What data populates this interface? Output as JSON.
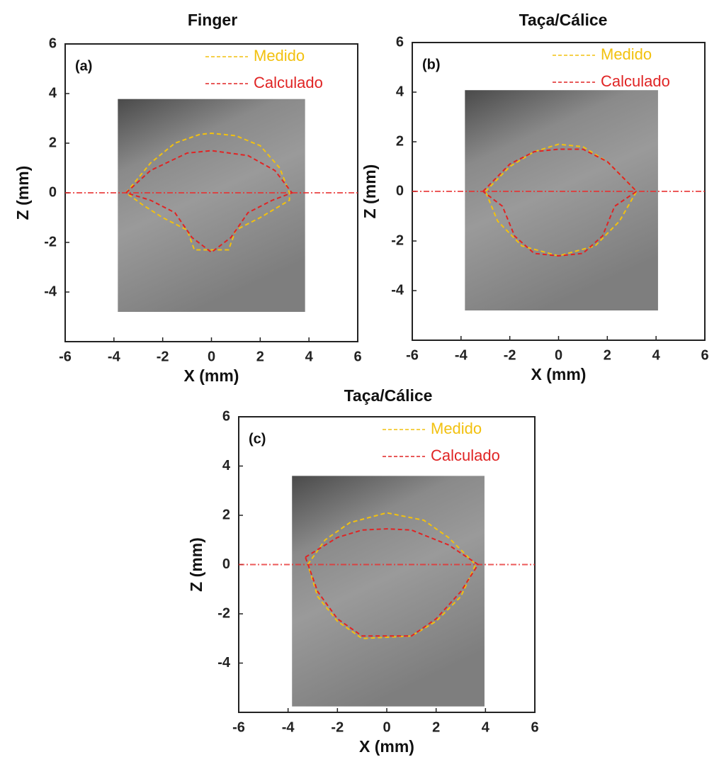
{
  "chart_data": [
    {
      "type": "line",
      "title": "Finger",
      "panel_label": "(a)",
      "x_label": "X (mm)",
      "y_label": "Z (mm)",
      "xlim": [
        -6,
        6
      ],
      "ylim": [
        -6,
        6
      ],
      "xticks": [
        -6,
        -4,
        -2,
        0,
        2,
        4,
        6
      ],
      "yticks": [
        -4,
        -2,
        0,
        2,
        4,
        6
      ],
      "hline": 0,
      "hline_color": "#e83030",
      "series": [
        {
          "name": "Medido",
          "color": "#f2c10f",
          "x": [
            -3.5,
            -2.5,
            -1.5,
            -0.5,
            0,
            1,
            2,
            2.8,
            3.2,
            3.2,
            2,
            1,
            0.7,
            -0.7,
            -1,
            -2,
            -2.8,
            -3.5
          ],
          "values": [
            0,
            1.2,
            2.0,
            2.35,
            2.4,
            2.3,
            1.9,
            1.0,
            0,
            -0.3,
            -1.0,
            -1.5,
            -2.3,
            -2.3,
            -1.5,
            -1.0,
            -0.5,
            0
          ]
        },
        {
          "name": "Calculado",
          "color": "#e02424",
          "x": [
            -3.5,
            -2.5,
            -1,
            0,
            1.5,
            2.6,
            3.3,
            2.5,
            1.5,
            0.8,
            0,
            -0.8,
            -1.5,
            -2.5,
            -3.5
          ],
          "values": [
            0,
            0.9,
            1.6,
            1.7,
            1.5,
            0.9,
            0,
            -0.3,
            -0.8,
            -1.8,
            -2.4,
            -1.8,
            -0.8,
            -0.3,
            0
          ]
        }
      ]
    },
    {
      "type": "line",
      "title": "Taça/Cálice",
      "panel_label": "(b)",
      "x_label": "X (mm)",
      "y_label": "Z (mm)",
      "xlim": [
        -6,
        6
      ],
      "ylim": [
        -6,
        6
      ],
      "xticks": [
        -6,
        -4,
        -2,
        0,
        2,
        4,
        6
      ],
      "yticks": [
        -4,
        -2,
        0,
        2,
        4,
        6
      ],
      "hline": 0,
      "hline_color": "#e83030",
      "series": [
        {
          "name": "Medido",
          "color": "#f2c10f",
          "x": [
            -3,
            -2,
            -1,
            0,
            1,
            2,
            2.8,
            3.2,
            2.5,
            1.5,
            0,
            -1.5,
            -2.5,
            -3
          ],
          "values": [
            0,
            1.0,
            1.6,
            1.9,
            1.8,
            1.2,
            0.4,
            0,
            -1.2,
            -2.2,
            -2.6,
            -2.2,
            -1.2,
            0
          ]
        },
        {
          "name": "Calculado",
          "color": "#e02424",
          "x": [
            -3.1,
            -2,
            -1,
            0,
            1,
            2,
            3,
            3.2,
            2.3,
            1.8,
            1,
            0,
            -1,
            -1.8,
            -2.3,
            -3.1
          ],
          "values": [
            0,
            1.1,
            1.6,
            1.7,
            1.7,
            1.2,
            0.2,
            0,
            -0.6,
            -1.8,
            -2.5,
            -2.6,
            -2.5,
            -1.8,
            -0.6,
            0
          ]
        }
      ]
    },
    {
      "type": "line",
      "title": "Taça/Cálice",
      "panel_label": "(c)",
      "x_label": "X (mm)",
      "y_label": "Z (mm)",
      "xlim": [
        -6,
        6
      ],
      "ylim": [
        -6,
        6
      ],
      "xticks": [
        -6,
        -4,
        -2,
        0,
        2,
        4,
        6
      ],
      "yticks": [
        -4,
        -2,
        0,
        2,
        4,
        6
      ],
      "hline": 0,
      "hline_color": "#e83030",
      "series": [
        {
          "name": "Medido",
          "color": "#f2c10f",
          "x": [
            -3.2,
            -2.5,
            -1.5,
            0,
            1.5,
            2.5,
            3.6,
            3,
            2,
            1,
            -1,
            -2,
            -2.8,
            -3.2
          ],
          "values": [
            0,
            1.0,
            1.7,
            2.1,
            1.8,
            1.1,
            0,
            -1.3,
            -2.3,
            -2.9,
            -3.0,
            -2.3,
            -1.3,
            0
          ]
        },
        {
          "name": "Calculado",
          "color": "#e02424",
          "x": [
            -3.3,
            -2,
            -1,
            0,
            1,
            2.5,
            3.7,
            3,
            2,
            1,
            -1,
            -2,
            -2.8,
            -3.3
          ],
          "values": [
            0.3,
            1.1,
            1.4,
            1.45,
            1.4,
            0.8,
            0,
            -1.1,
            -2.2,
            -2.9,
            -2.9,
            -2.2,
            -1.1,
            0.3
          ]
        }
      ]
    }
  ]
}
